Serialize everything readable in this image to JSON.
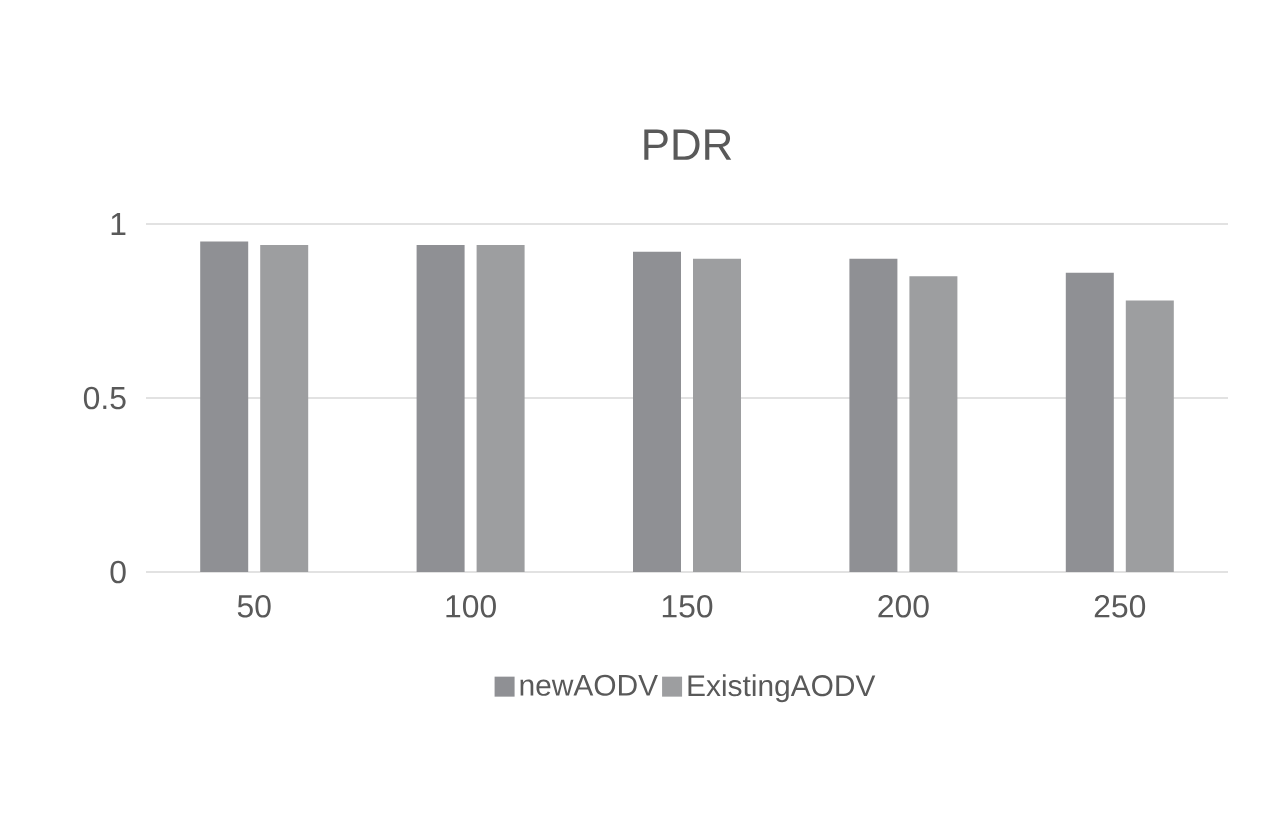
{
  "chart_data": {
    "type": "bar",
    "title": "PDR",
    "categories": [
      "50",
      "100",
      "150",
      "200",
      "250"
    ],
    "series": [
      {
        "name": "newAODV",
        "color": "#8f9094",
        "values": [
          0.95,
          0.94,
          0.92,
          0.9,
          0.86
        ]
      },
      {
        "name": "ExistingAODV",
        "color": "#9d9ea0",
        "values": [
          0.94,
          0.94,
          0.9,
          0.85,
          0.78
        ]
      }
    ],
    "ylim": [
      0,
      1
    ],
    "yticks": [
      0,
      0.5,
      1
    ],
    "grid": "y",
    "legend": "bottom"
  }
}
